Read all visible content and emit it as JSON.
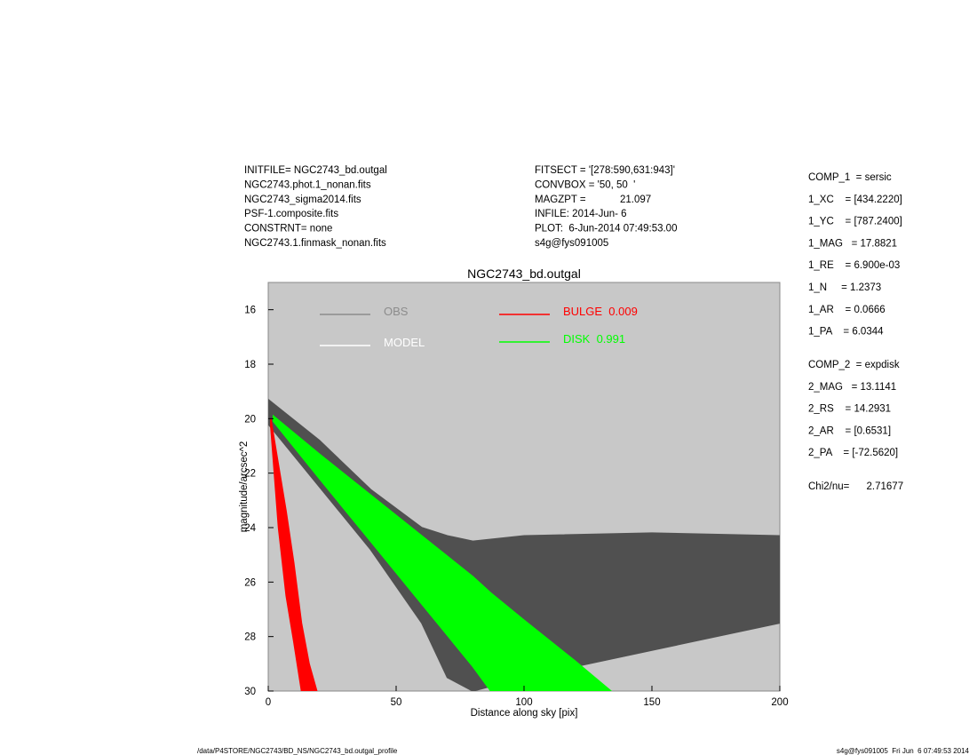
{
  "header": {
    "left": [
      "INITFILE= NGC2743_bd.outgal",
      "NGC2743.phot.1_nonan.fits",
      "NGC2743_sigma2014.fits",
      "PSF-1.composite.fits",
      "CONSTRNT= none",
      "NGC2743.1.finmask_nonan.fits"
    ],
    "middle": [
      "FITSECT = '[278:590,631:943]'",
      "CONVBOX = '50, 50  '",
      "MAGZPT =            21.097",
      "INFILE: 2014-Jun- 6",
      "PLOT:  6-Jun-2014 07:49:53.00",
      "s4g@fys091005"
    ]
  },
  "params": {
    "comp1": [
      "COMP_1  = sersic",
      "1_XC    = [434.2220]",
      "1_YC    = [787.2400]",
      "1_MAG   = 17.8821",
      "1_RE    = 6.900e-03",
      "1_N     = 1.2373",
      "1_AR    = 0.0666",
      "1_PA    = 6.0344"
    ],
    "comp2": [
      "COMP_2  = expdisk",
      "2_MAG   = 13.1141",
      "2_RS    = 14.2931",
      "2_AR    = [0.6531]",
      "2_PA    = [-72.5620]"
    ],
    "chi": "Chi2/nu=      2.71677"
  },
  "footer": {
    "left": "/data/P4STORE/NGC2743/BD_NS/NGC2743_bd.outgal_profile",
    "right": "s4g@fys091005  Fri Jun  6 07:49:53 2014"
  },
  "chart_data": {
    "type": "scatter-band",
    "title": "NGC2743_bd.outgal",
    "x_label": "Distance along sky [pix]",
    "y_label": "magnitude/arcsec^2",
    "xlim": [
      0,
      200
    ],
    "xticks": [
      0,
      50,
      100,
      150,
      200
    ],
    "ylim": [
      30,
      15
    ],
    "yticks": [
      16,
      18,
      20,
      22,
      24,
      26,
      28,
      30
    ],
    "background": "#c8c8c8",
    "legend": [
      {
        "name": "OBS",
        "color": "#8c8c8c"
      },
      {
        "name": "MODEL",
        "color": "#ffffff"
      },
      {
        "name": "BULGE  0.009",
        "color": "#ff0000"
      },
      {
        "name": "DISK  0.991",
        "color": "#00ff00"
      }
    ],
    "series": [
      {
        "color": "#505050",
        "x": [
          0,
          20,
          40,
          60,
          70,
          80,
          100,
          150,
          200
        ],
        "y_min": [
          19.3,
          20.8,
          22.6,
          24,
          24.3,
          24.5,
          24.3,
          24.2,
          24.3
        ],
        "y_max": [
          20.2,
          22.5,
          24.8,
          27.5,
          29.5,
          30,
          29.5,
          28.5,
          27.5
        ]
      },
      {
        "color": "#00ff00",
        "x": [
          2,
          20,
          40,
          60,
          80,
          87,
          100,
          120,
          134
        ],
        "y_min": [
          19.9,
          21.3,
          22.8,
          24.3,
          25.8,
          26.4,
          27.4,
          28.9,
          30
        ],
        "y_max": [
          20.1,
          22.2,
          24.5,
          26.8,
          29.1,
          30,
          30,
          30,
          30
        ]
      },
      {
        "color": "#ff0000",
        "x": [
          1,
          4,
          7,
          10,
          13,
          16,
          19
        ],
        "y_min": [
          20,
          21.7,
          23.4,
          25.3,
          27.5,
          29,
          30
        ],
        "y_max": [
          20.3,
          24,
          26.5,
          28.2,
          30,
          30,
          30
        ]
      }
    ]
  }
}
